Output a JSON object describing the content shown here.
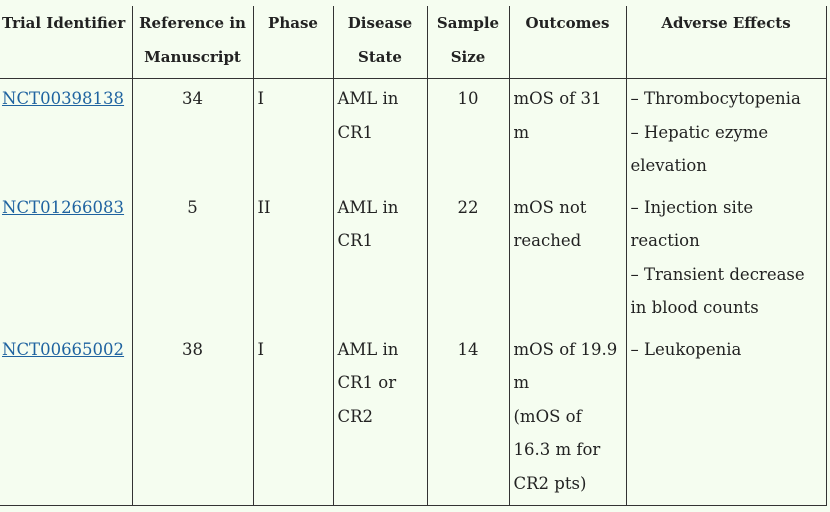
{
  "headers": {
    "trial_identifier": "Trial Identifier",
    "reference": "Reference in Manuscript",
    "phase": "Phase",
    "disease_state": "Disease State",
    "sample_size": "Sample Size",
    "outcomes": "Outcomes",
    "adverse_effects": "Adverse Effects"
  },
  "rows": [
    {
      "trial": "NCT00398138",
      "reference": "34",
      "phase": "I",
      "disease_state": "AML in CR1",
      "sample_size": "10",
      "outcomes": "mOS of 31 m",
      "adverse_effects": [
        "– Thrombocytopenia",
        "– Hepatic ezyme elevation"
      ]
    },
    {
      "trial": "NCT01266083",
      "reference": "5",
      "phase": "II",
      "disease_state": "AML in CR1",
      "sample_size": "22",
      "outcomes": "mOS not reached",
      "adverse_effects": [
        "– Injection site reaction",
        "– Transient decrease in blood counts"
      ]
    },
    {
      "trial": "NCT00665002",
      "reference": "38",
      "phase": "I",
      "disease_state": "AML in CR1 or CR2",
      "sample_size": "14",
      "outcomes": "mOS of 19.9 m",
      "outcomes_note": "(mOS of 16.3 m for CR2 pts)",
      "adverse_effects": [
        "– Leukopenia"
      ]
    }
  ],
  "colors": {
    "background": "#f5fdf0",
    "link": "#1f63a0",
    "border": "#333333"
  }
}
